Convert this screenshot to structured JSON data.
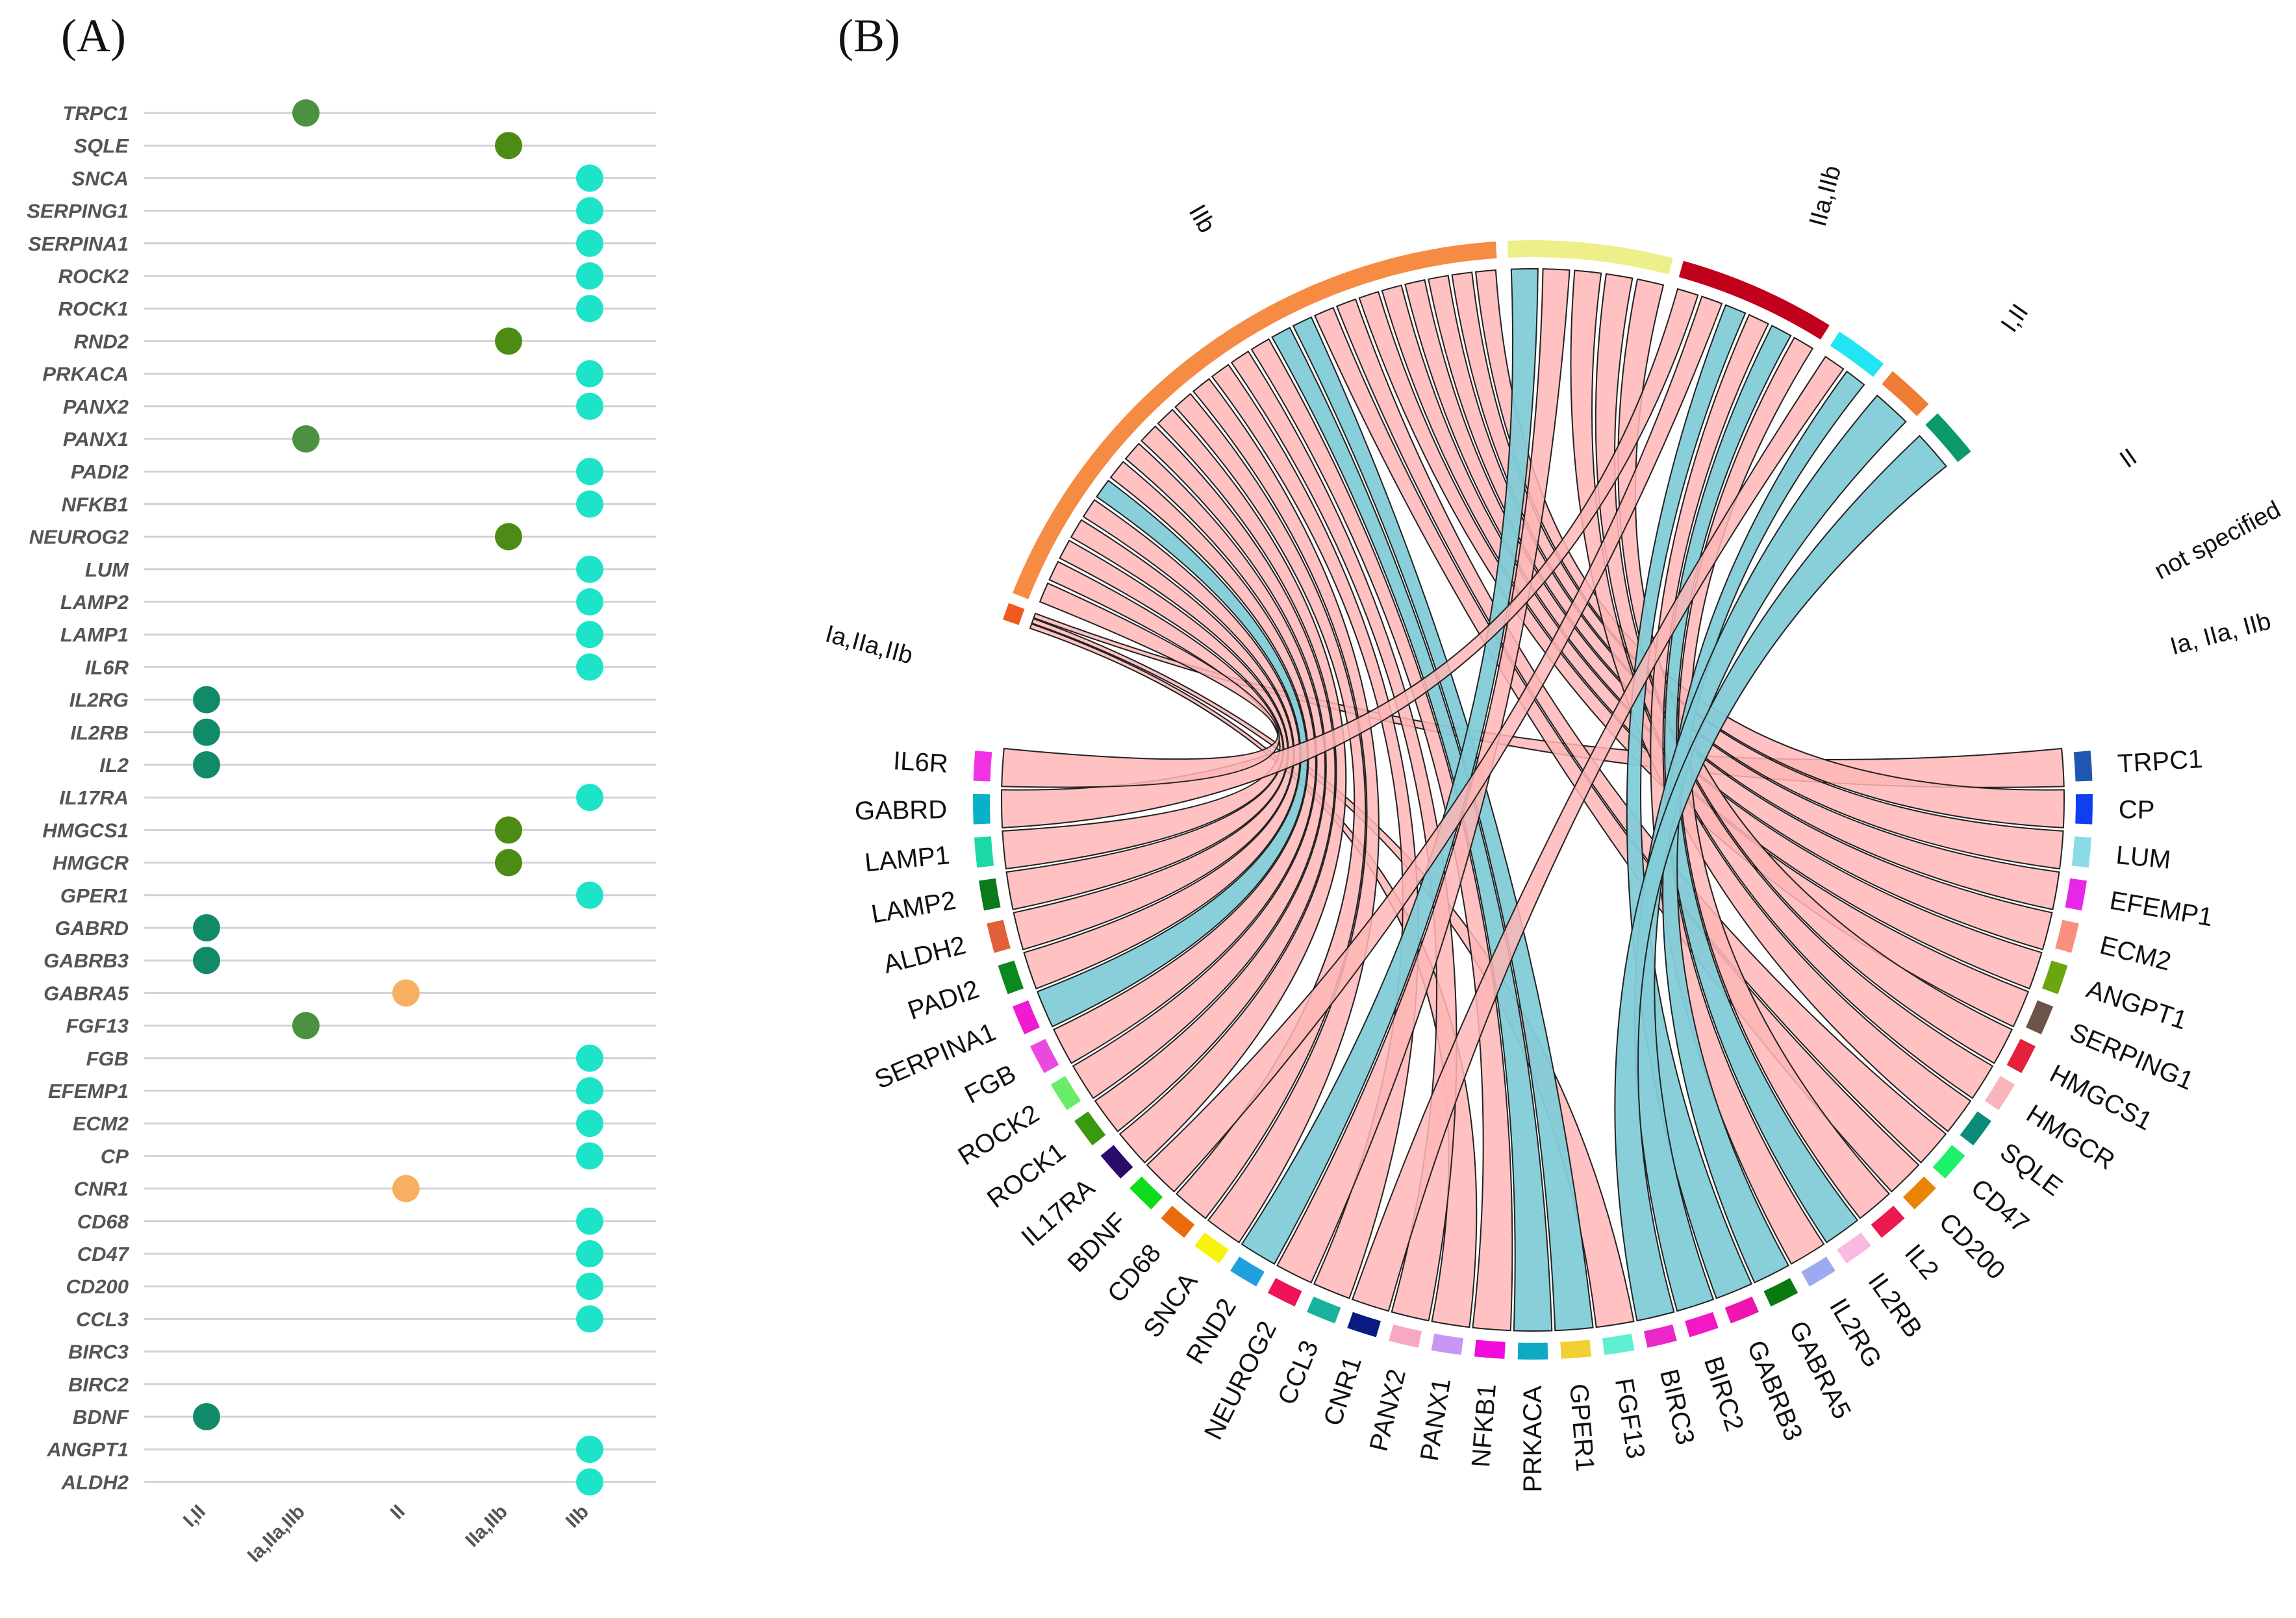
{
  "panels": {
    "a": "(A)",
    "b": "(B)"
  },
  "chart_data": [
    {
      "type": "scatter",
      "title": "",
      "x_categories": [
        "I,II",
        "Ia,IIa,IIb",
        "II",
        "IIa,IIb",
        "IIb"
      ],
      "genes": [
        "TRPC1",
        "SQLE",
        "SNCA",
        "SERPING1",
        "SERPINA1",
        "ROCK2",
        "ROCK1",
        "RND2",
        "PRKACA",
        "PANX2",
        "PANX1",
        "PADI2",
        "NFKB1",
        "NEUROG2",
        "LUM",
        "LAMP2",
        "LAMP1",
        "IL6R",
        "IL2RG",
        "IL2RB",
        "IL2",
        "IL17RA",
        "HMGCS1",
        "HMGCR",
        "GPER1",
        "GABRD",
        "GABRB3",
        "GABRA5",
        "FGF13",
        "FGB",
        "EFEMP1",
        "ECM2",
        "CP",
        "CNR1",
        "CD68",
        "CD47",
        "CD200",
        "CCL3",
        "BIRC3",
        "BIRC2",
        "BDNF",
        "ANGPT1",
        "ALDH2"
      ],
      "points": [
        {
          "gene": "TRPC1",
          "category": "Ia,IIa,IIb"
        },
        {
          "gene": "SQLE",
          "category": "IIa,IIb"
        },
        {
          "gene": "SNCA",
          "category": "IIb"
        },
        {
          "gene": "SERPING1",
          "category": "IIb"
        },
        {
          "gene": "SERPINA1",
          "category": "IIb"
        },
        {
          "gene": "ROCK2",
          "category": "IIb"
        },
        {
          "gene": "ROCK1",
          "category": "IIb"
        },
        {
          "gene": "RND2",
          "category": "IIa,IIb"
        },
        {
          "gene": "PRKACA",
          "category": "IIb"
        },
        {
          "gene": "PANX2",
          "category": "IIb"
        },
        {
          "gene": "PANX1",
          "category": "Ia,IIa,IIb"
        },
        {
          "gene": "PADI2",
          "category": "IIb"
        },
        {
          "gene": "NFKB1",
          "category": "IIb"
        },
        {
          "gene": "NEUROG2",
          "category": "IIa,IIb"
        },
        {
          "gene": "LUM",
          "category": "IIb"
        },
        {
          "gene": "LAMP2",
          "category": "IIb"
        },
        {
          "gene": "LAMP1",
          "category": "IIb"
        },
        {
          "gene": "IL6R",
          "category": "IIb"
        },
        {
          "gene": "IL2RG",
          "category": "I,II"
        },
        {
          "gene": "IL2RB",
          "category": "I,II"
        },
        {
          "gene": "IL2",
          "category": "I,II"
        },
        {
          "gene": "IL17RA",
          "category": "IIb"
        },
        {
          "gene": "HMGCS1",
          "category": "IIa,IIb"
        },
        {
          "gene": "HMGCR",
          "category": "IIa,IIb"
        },
        {
          "gene": "GPER1",
          "category": "IIb"
        },
        {
          "gene": "GABRD",
          "category": "I,II"
        },
        {
          "gene": "GABRB3",
          "category": "I,II"
        },
        {
          "gene": "GABRA5",
          "category": "II"
        },
        {
          "gene": "FGF13",
          "category": "Ia,IIa,IIb"
        },
        {
          "gene": "FGB",
          "category": "IIb"
        },
        {
          "gene": "EFEMP1",
          "category": "IIb"
        },
        {
          "gene": "ECM2",
          "category": "IIb"
        },
        {
          "gene": "CP",
          "category": "IIb"
        },
        {
          "gene": "CNR1",
          "category": "II"
        },
        {
          "gene": "CD68",
          "category": "IIb"
        },
        {
          "gene": "CD47",
          "category": "IIb"
        },
        {
          "gene": "CD200",
          "category": "IIb"
        },
        {
          "gene": "CCL3",
          "category": "IIb"
        },
        {
          "gene": "BDNF",
          "category": "I,II"
        },
        {
          "gene": "ANGPT1",
          "category": "IIb"
        },
        {
          "gene": "ALDH2",
          "category": "IIb"
        }
      ],
      "category_colors": {
        "I,II": "#118a6a",
        "Ia,IIa,IIb": "#4a9140",
        "II": "#f7b061",
        "IIa,IIb": "#4c8c14",
        "IIb": "#1de3c8"
      }
    },
    {
      "type": "chord",
      "sectors": [
        {
          "name": "Ia,IIa,IIb",
          "color": "#f05a1e"
        },
        {
          "name": "IIb",
          "color": "#f68b44"
        },
        {
          "name": "IIa,IIb",
          "color": "#eeee8a"
        },
        {
          "name": "I,II",
          "color": "#c1001c"
        },
        {
          "name": "II",
          "color": "#22e4f2"
        },
        {
          "name": "not specified",
          "color": "#ef7c35"
        },
        {
          "name": "Ia, IIa, IIb",
          "color": "#0c9a6a"
        }
      ],
      "genes": [
        {
          "name": "TRPC1",
          "color": "#1f57b0"
        },
        {
          "name": "CP",
          "color": "#0f3ff0"
        },
        {
          "name": "LUM",
          "color": "#8adbe5"
        },
        {
          "name": "EFEMP1",
          "color": "#e628e6"
        },
        {
          "name": "ECM2",
          "color": "#f9907f"
        },
        {
          "name": "ANGPT1",
          "color": "#6ba611"
        },
        {
          "name": "SERPING1",
          "color": "#6b5346"
        },
        {
          "name": "HMGCS1",
          "color": "#e3213a"
        },
        {
          "name": "HMGCR",
          "color": "#f8b6bc"
        },
        {
          "name": "SQLE",
          "color": "#0a8a78"
        },
        {
          "name": "CD47",
          "color": "#1ef069"
        },
        {
          "name": "CD200",
          "color": "#e88406"
        },
        {
          "name": "IL2",
          "color": "#eb1a4e"
        },
        {
          "name": "IL2RB",
          "color": "#f8bae0"
        },
        {
          "name": "IL2RG",
          "color": "#9eaaf0"
        },
        {
          "name": "GABRA5",
          "color": "#0a7a10"
        },
        {
          "name": "GABRB3",
          "color": "#ef15b0"
        },
        {
          "name": "BIRC2",
          "color": "#f218c4"
        },
        {
          "name": "BIRC3",
          "color": "#ea27c8"
        },
        {
          "name": "FGF13",
          "color": "#5ff0d4"
        },
        {
          "name": "GPER1",
          "color": "#f2d034"
        },
        {
          "name": "PRKACA",
          "color": "#0ea9c2"
        },
        {
          "name": "NFKB1",
          "color": "#f20adc"
        },
        {
          "name": "PANX1",
          "color": "#c896f4"
        },
        {
          "name": "PANX2",
          "color": "#f8a8c0"
        },
        {
          "name": "CNR1",
          "color": "#0a1a80"
        },
        {
          "name": "CCL3",
          "color": "#1ab29c"
        },
        {
          "name": "NEUROG2",
          "color": "#ee1256"
        },
        {
          "name": "RND2",
          "color": "#21a0e0"
        },
        {
          "name": "SNCA",
          "color": "#f8f30a"
        },
        {
          "name": "CD68",
          "color": "#ea6a0e"
        },
        {
          "name": "BDNF",
          "color": "#0edc1a"
        },
        {
          "name": "IL17RA",
          "color": "#2a0a6a"
        },
        {
          "name": "ROCK1",
          "color": "#3a9a0e"
        },
        {
          "name": "ROCK2",
          "color": "#6aec6a"
        },
        {
          "name": "FGB",
          "color": "#e84ae0"
        },
        {
          "name": "SERPINA1",
          "color": "#f21ad0"
        },
        {
          "name": "PADI2",
          "color": "#0a8a1e"
        },
        {
          "name": "ALDH2",
          "color": "#e0603a"
        },
        {
          "name": "LAMP2",
          "color": "#0a7a1a"
        },
        {
          "name": "LAMP1",
          "color": "#1ad8a8"
        },
        {
          "name": "GABRD",
          "color": "#0ab0c8"
        },
        {
          "name": "IL6R",
          "color": "#f232e2"
        }
      ],
      "links": [
        {
          "gene": "TRPC1",
          "sector": "Ia,IIa,IIb",
          "highlight": false
        },
        {
          "gene": "CP",
          "sector": "IIb",
          "highlight": false
        },
        {
          "gene": "LUM",
          "sector": "IIb",
          "highlight": false
        },
        {
          "gene": "EFEMP1",
          "sector": "IIb",
          "highlight": false
        },
        {
          "gene": "ECM2",
          "sector": "IIb",
          "highlight": false
        },
        {
          "gene": "ANGPT1",
          "sector": "IIb",
          "highlight": false
        },
        {
          "gene": "SERPING1",
          "sector": "IIb",
          "highlight": false
        },
        {
          "gene": "HMGCS1",
          "sector": "IIa,IIb",
          "highlight": false
        },
        {
          "gene": "HMGCR",
          "sector": "IIa,IIb",
          "highlight": false
        },
        {
          "gene": "SQLE",
          "sector": "IIa,IIb",
          "highlight": false
        },
        {
          "gene": "CD47",
          "sector": "IIb",
          "highlight": false
        },
        {
          "gene": "CD200",
          "sector": "IIb",
          "highlight": false
        },
        {
          "gene": "IL2",
          "sector": "I,II",
          "highlight": false
        },
        {
          "gene": "IL2RB",
          "sector": "I,II",
          "highlight": true
        },
        {
          "gene": "IL2RG",
          "sector": "I,II",
          "highlight": false
        },
        {
          "gene": "GABRA5",
          "sector": "II",
          "highlight": true
        },
        {
          "gene": "GABRB3",
          "sector": "I,II",
          "highlight": true
        },
        {
          "gene": "BIRC2",
          "sector": "not specified",
          "highlight": true
        },
        {
          "gene": "BIRC3",
          "sector": "Ia, IIa, IIb",
          "highlight": true
        },
        {
          "gene": "FGF13",
          "sector": "Ia,IIa,IIb",
          "highlight": false
        },
        {
          "gene": "GPER1",
          "sector": "IIb",
          "highlight": true
        },
        {
          "gene": "PRKACA",
          "sector": "IIb",
          "highlight": true
        },
        {
          "gene": "NFKB1",
          "sector": "IIb",
          "highlight": false
        },
        {
          "gene": "PANX1",
          "sector": "Ia,IIa,IIb",
          "highlight": false
        },
        {
          "gene": "PANX2",
          "sector": "IIb",
          "highlight": false
        },
        {
          "gene": "CNR1",
          "sector": "II",
          "highlight": false
        },
        {
          "gene": "CCL3",
          "sector": "IIb",
          "highlight": false
        },
        {
          "gene": "NEUROG2",
          "sector": "IIa,IIb",
          "highlight": false
        },
        {
          "gene": "RND2",
          "sector": "IIa,IIb",
          "highlight": true
        },
        {
          "gene": "SNCA",
          "sector": "IIb",
          "highlight": false
        },
        {
          "gene": "CD68",
          "sector": "IIb",
          "highlight": false
        },
        {
          "gene": "BDNF",
          "sector": "I,II",
          "highlight": false
        },
        {
          "gene": "IL17RA",
          "sector": "IIb",
          "highlight": false
        },
        {
          "gene": "ROCK1",
          "sector": "IIb",
          "highlight": false
        },
        {
          "gene": "ROCK2",
          "sector": "IIb",
          "highlight": false
        },
        {
          "gene": "FGB",
          "sector": "IIb",
          "highlight": false
        },
        {
          "gene": "SERPINA1",
          "sector": "IIb",
          "highlight": true
        },
        {
          "gene": "PADI2",
          "sector": "IIb",
          "highlight": false
        },
        {
          "gene": "ALDH2",
          "sector": "IIb",
          "highlight": false
        },
        {
          "gene": "LAMP2",
          "sector": "IIb",
          "highlight": false
        },
        {
          "gene": "LAMP1",
          "sector": "IIb",
          "highlight": false
        },
        {
          "gene": "GABRD",
          "sector": "I,II",
          "highlight": false
        },
        {
          "gene": "IL6R",
          "sector": "IIb",
          "highlight": false
        }
      ],
      "link_colors": {
        "default": "#ffb6b6",
        "highlight": "#83ccd8"
      }
    }
  ]
}
